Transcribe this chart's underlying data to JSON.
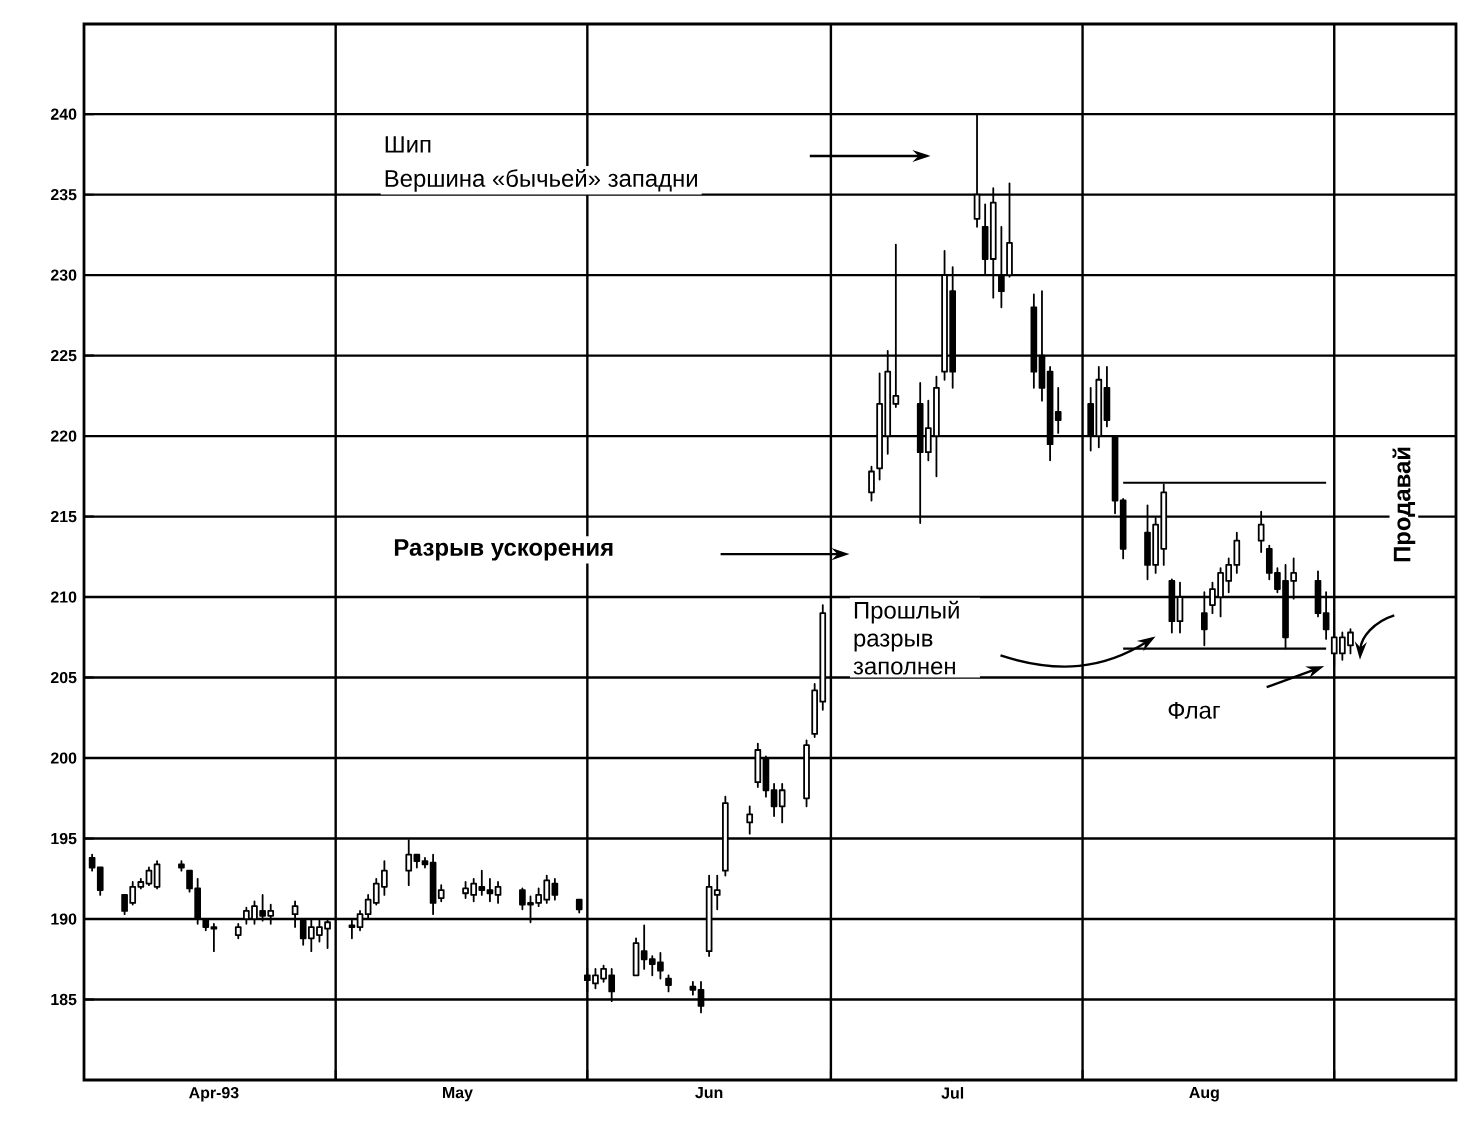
{
  "chart_data": {
    "type": "candlestick",
    "color": "#000000",
    "x": [
      "1993-04-01",
      "1993-04-02",
      "1993-04-05",
      "1993-04-06",
      "1993-04-07",
      "1993-04-08",
      "1993-04-09",
      "1993-04-12",
      "1993-04-13",
      "1993-04-14",
      "1993-04-15",
      "1993-04-16",
      "1993-04-19",
      "1993-04-20",
      "1993-04-21",
      "1993-04-22",
      "1993-04-23",
      "1993-04-26",
      "1993-04-27",
      "1993-04-28",
      "1993-04-29",
      "1993-04-30",
      "1993-05-03",
      "1993-05-04",
      "1993-05-05",
      "1993-05-06",
      "1993-05-07",
      "1993-05-10",
      "1993-05-11",
      "1993-05-12",
      "1993-05-13",
      "1993-05-14",
      "1993-05-17",
      "1993-05-18",
      "1993-05-19",
      "1993-05-20",
      "1993-05-21",
      "1993-05-24",
      "1993-05-25",
      "1993-05-26",
      "1993-05-27",
      "1993-05-28",
      "1993-05-31",
      "1993-06-01",
      "1993-06-02",
      "1993-06-03",
      "1993-06-04",
      "1993-06-07",
      "1993-06-08",
      "1993-06-09",
      "1993-06-10",
      "1993-06-11",
      "1993-06-14",
      "1993-06-15",
      "1993-06-16",
      "1993-06-17",
      "1993-06-18",
      "1993-06-21",
      "1993-06-22",
      "1993-06-23",
      "1993-06-24",
      "1993-06-25",
      "1993-06-28",
      "1993-06-29",
      "1993-06-30",
      "1993-07-06",
      "1993-07-07",
      "1993-07-08",
      "1993-07-09",
      "1993-07-12",
      "1993-07-13",
      "1993-07-14",
      "1993-07-15",
      "1993-07-16",
      "1993-07-19",
      "1993-07-20",
      "1993-07-21",
      "1993-07-22",
      "1993-07-23",
      "1993-07-26",
      "1993-07-27",
      "1993-07-28",
      "1993-07-29",
      "1993-08-02",
      "1993-08-03",
      "1993-08-04",
      "1993-08-05",
      "1993-08-06",
      "1993-08-09",
      "1993-08-10",
      "1993-08-11",
      "1993-08-12",
      "1993-08-13",
      "1993-08-16",
      "1993-08-17",
      "1993-08-18",
      "1993-08-19",
      "1993-08-20",
      "1993-08-23",
      "1993-08-24",
      "1993-08-25",
      "1993-08-26",
      "1993-08-27",
      "1993-08-30",
      "1993-08-31",
      "1993-09-01",
      "1993-09-02",
      "1993-09-03"
    ],
    "ohlc": [
      [
        193.8,
        194,
        193,
        193.2
      ],
      [
        193.2,
        193.2,
        191.5,
        191.8
      ],
      [
        191.5,
        191.5,
        190.3,
        190.5
      ],
      [
        191,
        192.3,
        190.9,
        192
      ],
      [
        192,
        192.5,
        191.9,
        192.3
      ],
      [
        192.2,
        193.2,
        192.1,
        193
      ],
      [
        192,
        193.6,
        191.9,
        193.4
      ],
      [
        193.4,
        193.6,
        193,
        193.2
      ],
      [
        193,
        193,
        191.7,
        191.9
      ],
      [
        191.9,
        192.5,
        189.7,
        190
      ],
      [
        190,
        190,
        189.3,
        189.5
      ],
      [
        189.5,
        189.7,
        188,
        189.4
      ],
      [
        189,
        189.7,
        188.8,
        189.5
      ],
      [
        190,
        190.7,
        189.7,
        190.5
      ],
      [
        190,
        191.1,
        189.7,
        190.8
      ],
      [
        190.5,
        191.5,
        189.9,
        190.2
      ],
      [
        190.2,
        190.9,
        189.7,
        190.5
      ],
      [
        190.3,
        191.1,
        189.5,
        190.8
      ],
      [
        189.9,
        189.9,
        188.4,
        188.8
      ],
      [
        188.8,
        190,
        188,
        189.5
      ],
      [
        189,
        189.9,
        188.6,
        189.5
      ],
      [
        189.4,
        190,
        188.2,
        189.8
      ],
      [
        189.5,
        189.9,
        188.8,
        189.6
      ],
      [
        189.5,
        190.5,
        189.3,
        190.3
      ],
      [
        190.3,
        191.5,
        190.1,
        191.2
      ],
      [
        191,
        192.5,
        190.9,
        192.2
      ],
      [
        192,
        193.6,
        191.5,
        193
      ],
      [
        193,
        194.9,
        192.1,
        194
      ],
      [
        194,
        194,
        193.2,
        193.6
      ],
      [
        193.6,
        193.8,
        193.2,
        193.4
      ],
      [
        193.5,
        194,
        190.3,
        191
      ],
      [
        191.3,
        192.1,
        191.1,
        191.8
      ],
      [
        191.6,
        192.3,
        191.3,
        191.9
      ],
      [
        191.5,
        192.5,
        191.1,
        192.2
      ],
      [
        192,
        193,
        191.5,
        191.8
      ],
      [
        191.8,
        192.5,
        191.1,
        191.6
      ],
      [
        191.5,
        192.3,
        191,
        192
      ],
      [
        191.8,
        191.9,
        190.6,
        190.9
      ],
      [
        190.9,
        191.4,
        189.8,
        191
      ],
      [
        191,
        191.9,
        190.8,
        191.5
      ],
      [
        191.2,
        192.7,
        191,
        192.4
      ],
      [
        192.2,
        192.5,
        191.2,
        191.5
      ],
      [
        191.2,
        191.2,
        190.4,
        190.6
      ],
      [
        186.5,
        186.9,
        185.5,
        186.2
      ],
      [
        186,
        186.9,
        185.7,
        186.5
      ],
      [
        186.3,
        187.1,
        186.1,
        186.9
      ],
      [
        186.5,
        186.9,
        184.9,
        185.5
      ],
      [
        186.5,
        188.8,
        186.5,
        188.5
      ],
      [
        188,
        189.6,
        186.9,
        187.5
      ],
      [
        187.5,
        187.7,
        186.5,
        187.2
      ],
      [
        187.3,
        187.9,
        186.3,
        186.8
      ],
      [
        186.3,
        186.5,
        185.5,
        185.9
      ],
      [
        185.8,
        186.1,
        185.3,
        185.6
      ],
      [
        185.6,
        186.1,
        184.2,
        184.6
      ],
      [
        188,
        192.7,
        187.7,
        192
      ],
      [
        191.5,
        192.7,
        190.6,
        191.8
      ],
      [
        193,
        197.6,
        192.7,
        197.2
      ],
      [
        196,
        197,
        195.3,
        196.5
      ],
      [
        198.5,
        200.9,
        198.2,
        200.5
      ],
      [
        200,
        200.1,
        197.6,
        198
      ],
      [
        198,
        198.4,
        196.4,
        197
      ],
      [
        197,
        198.4,
        196,
        198
      ],
      [
        197.5,
        201.1,
        197,
        200.8
      ],
      [
        201.5,
        204.6,
        201.3,
        204.2
      ],
      [
        203.5,
        209.5,
        203,
        209
      ],
      [
        216.5,
        218.1,
        216,
        217.8
      ],
      [
        218,
        223.9,
        217.3,
        222
      ],
      [
        220,
        225.3,
        218.9,
        224
      ],
      [
        222,
        231.9,
        221.8,
        222.5
      ],
      [
        222,
        223.3,
        214.6,
        219
      ],
      [
        219,
        222.2,
        218.5,
        220.5
      ],
      [
        220,
        223.7,
        217.5,
        223
      ],
      [
        224,
        231.5,
        223.5,
        230
      ],
      [
        229,
        230.5,
        223,
        224
      ],
      [
        233.5,
        240,
        233,
        235
      ],
      [
        233,
        234.4,
        230.1,
        231
      ],
      [
        231,
        235.4,
        228.6,
        234.5
      ],
      [
        230,
        233,
        228,
        229
      ],
      [
        230,
        235.7,
        229.9,
        232
      ],
      [
        228,
        228.8,
        223,
        224
      ],
      [
        225,
        229,
        222.2,
        223
      ],
      [
        224,
        224.3,
        218.5,
        219.5
      ],
      [
        221.5,
        223,
        220.2,
        221
      ],
      [
        222,
        223,
        219.1,
        220
      ],
      [
        220,
        224.3,
        219.3,
        223.5
      ],
      [
        223,
        224.3,
        220.6,
        221
      ],
      [
        220,
        220,
        215.2,
        216
      ],
      [
        216,
        216.1,
        212.4,
        213
      ],
      [
        214,
        215.7,
        211.1,
        212
      ],
      [
        212,
        214.9,
        211.5,
        214.5
      ],
      [
        213,
        217,
        212,
        216.5
      ],
      [
        211,
        211.1,
        207.8,
        208.5
      ],
      [
        208.5,
        210.9,
        207.8,
        210
      ],
      [
        209,
        210.3,
        207,
        208
      ],
      [
        209.5,
        210.9,
        209,
        210.5
      ],
      [
        210,
        211.8,
        208.8,
        211.5
      ],
      [
        211,
        212.4,
        210.3,
        212
      ],
      [
        212,
        214,
        211.5,
        213.5
      ],
      [
        213.5,
        215.3,
        212.8,
        214.5
      ],
      [
        213,
        213.2,
        211.1,
        211.5
      ],
      [
        211.5,
        211.8,
        210.3,
        210.5
      ],
      [
        211,
        212,
        206.8,
        207.5
      ],
      [
        211,
        212.4,
        209.9,
        211.5
      ],
      [
        211,
        211.6,
        208.8,
        209
      ],
      [
        209,
        210.3,
        207.4,
        208
      ],
      [
        206.5,
        207.8,
        205.7,
        207.5
      ],
      [
        206.5,
        207.8,
        206.1,
        207.5
      ],
      [
        207,
        208,
        206.5,
        207.8
      ]
    ],
    "series": [
      {
        "type": "line",
        "color": "#000000",
        "x": [
          "1993-08-06",
          "1993-08-31"
        ],
        "values": [
          217.1,
          217.1
        ]
      },
      {
        "type": "line",
        "color": "#000000",
        "x": [
          "1993-08-06",
          "1993-08-31"
        ],
        "values": [
          206.8,
          206.8
        ]
      }
    ],
    "xlim": [
      "1993-03-31",
      "1993-09-16"
    ],
    "ylim": [
      180,
      245.6
    ],
    "xticks": [
      {
        "value": "1993-04-16",
        "label": "Apr-93"
      },
      {
        "value": "1993-05-01",
        "label": null
      },
      {
        "value": "1993-05-16",
        "label": "May"
      },
      {
        "value": "1993-06-01",
        "label": null
      },
      {
        "value": "1993-06-16",
        "label": "Jun"
      },
      {
        "value": "1993-07-01",
        "label": null
      },
      {
        "value": "1993-07-16",
        "label": "Jul"
      },
      {
        "value": "1993-08-01",
        "label": null
      },
      {
        "value": "1993-08-16",
        "label": "Aug"
      },
      {
        "value": "1993-09-01",
        "label": null
      }
    ],
    "yticks": [
      185,
      190,
      195,
      200,
      205,
      210,
      215,
      220,
      225,
      230,
      235,
      240
    ],
    "grid": true,
    "annotations": [
      "Шип",
      "Вершина «бычьей» западни",
      "Разрыв ускорения",
      "Прошлый разрыв заполнен",
      "Флаг",
      "Продавай"
    ]
  }
}
